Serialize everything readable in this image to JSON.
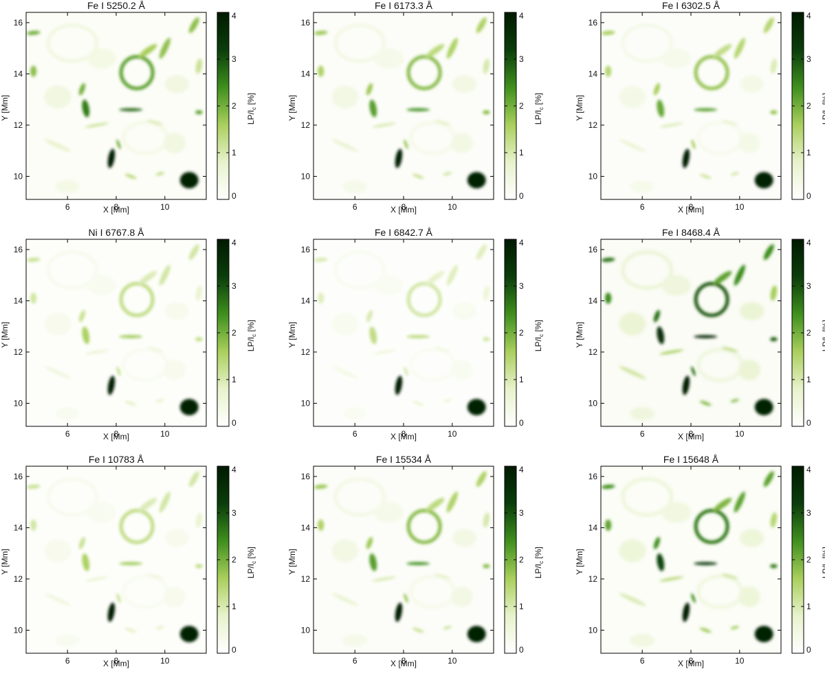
{
  "figure": {
    "colormap": [
      "#ffffff",
      "#e8f2cc",
      "#a9cf5c",
      "#3f8f1e",
      "#0b3d0b",
      "#001a00"
    ],
    "axis_color": "#000000"
  },
  "chart_data": [
    {
      "type": "heatmap",
      "title": "Fe I 5250.2 Å",
      "xlabel": "X [Mm]",
      "ylabel": "Y [Mm]",
      "xlim": [
        4.3,
        11.7
      ],
      "ylim": [
        9.1,
        16.4
      ],
      "xticks": [
        6,
        8,
        10
      ],
      "yticks": [
        10,
        12,
        14,
        16
      ],
      "colorbar": {
        "label_main": "LP/I",
        "label_sub": "c",
        "label_unit": " [%]",
        "range": [
          0,
          4
        ],
        "ticks": [
          0,
          1,
          2,
          3,
          4
        ]
      },
      "intensity": 1.0
    },
    {
      "type": "heatmap",
      "title": "Fe I 6173.3 Å",
      "xlabel": "X [Mm]",
      "ylabel": "Y [Mm]",
      "xlim": [
        4.3,
        11.7
      ],
      "ylim": [
        9.1,
        16.4
      ],
      "xticks": [
        6,
        8,
        10
      ],
      "yticks": [
        10,
        12,
        14,
        16
      ],
      "colorbar": {
        "label_main": "LP/I",
        "label_sub": "c",
        "label_unit": " [%]",
        "range": [
          0,
          4
        ],
        "ticks": [
          0,
          1,
          2,
          3,
          4
        ]
      },
      "intensity": 0.85
    },
    {
      "type": "heatmap",
      "title": "Fe I 6302.5 Å",
      "xlabel": "X [Mm]",
      "ylabel": "Y [Mm]",
      "xlim": [
        4.3,
        11.7
      ],
      "ylim": [
        9.1,
        16.4
      ],
      "xticks": [
        6,
        8,
        10
      ],
      "yticks": [
        10,
        12,
        14,
        16
      ],
      "colorbar": {
        "label_main": "LP/I",
        "label_sub": "c",
        "label_unit": " [%]",
        "range": [
          0,
          4
        ],
        "ticks": [
          0,
          1,
          2,
          3,
          4
        ]
      },
      "intensity": 0.8
    },
    {
      "type": "heatmap",
      "title": "Ni I 6767.8 Å",
      "xlabel": "X [Mm]",
      "ylabel": "Y [Mm]",
      "xlim": [
        4.3,
        11.7
      ],
      "ylim": [
        9.1,
        16.4
      ],
      "xticks": [
        6,
        8,
        10
      ],
      "yticks": [
        10,
        12,
        14,
        16
      ],
      "colorbar": {
        "label_main": "LP/I",
        "label_sub": "c",
        "label_unit": " [%]",
        "range": [
          0,
          4
        ],
        "ticks": [
          0,
          1,
          2,
          3,
          4
        ]
      },
      "intensity": 0.6
    },
    {
      "type": "heatmap",
      "title": "Fe I 6842.7 Å",
      "xlabel": "X [Mm]",
      "ylabel": "Y [Mm]",
      "xlim": [
        4.3,
        11.7
      ],
      "ylim": [
        9.1,
        16.4
      ],
      "xticks": [
        6,
        8,
        10
      ],
      "yticks": [
        10,
        12,
        14,
        16
      ],
      "colorbar": {
        "label_main": "LP/I",
        "label_sub": "c",
        "label_unit": " [%]",
        "range": [
          0,
          4
        ],
        "ticks": [
          0,
          1,
          2,
          3,
          4
        ]
      },
      "intensity": 0.5
    },
    {
      "type": "heatmap",
      "title": "Fe I 8468.4 Å",
      "xlabel": "X [Mm]",
      "ylabel": "Y [Mm]",
      "xlim": [
        4.3,
        11.7
      ],
      "ylim": [
        9.1,
        16.4
      ],
      "xticks": [
        6,
        8,
        10
      ],
      "yticks": [
        10,
        12,
        14,
        16
      ],
      "colorbar": {
        "label_main": "LP/I",
        "label_sub": "c",
        "label_unit": " [%]",
        "range": [
          0,
          4
        ],
        "ticks": [
          0,
          1,
          2,
          3,
          4
        ]
      },
      "intensity": 1.35
    },
    {
      "type": "heatmap",
      "title": "Fe I 10783 Å",
      "xlabel": "X [Mm]",
      "ylabel": "Y [Mm]",
      "xlim": [
        4.3,
        11.7
      ],
      "ylim": [
        9.1,
        16.4
      ],
      "xticks": [
        6,
        8,
        10
      ],
      "yticks": [
        10,
        12,
        14,
        16
      ],
      "colorbar": {
        "label_main": "LP/I",
        "label_sub": "c",
        "label_unit": " [%]",
        "range": [
          0,
          4
        ],
        "ticks": [
          0,
          1,
          2,
          3,
          4
        ]
      },
      "intensity": 0.6
    },
    {
      "type": "heatmap",
      "title": "Fe I 15534 Å",
      "xlabel": "X [Mm]",
      "ylabel": "Y [Mm]",
      "xlim": [
        4.3,
        11.7
      ],
      "ylim": [
        9.1,
        16.4
      ],
      "xticks": [
        6,
        8,
        10
      ],
      "yticks": [
        10,
        12,
        14,
        16
      ],
      "colorbar": {
        "label_main": "LP/I",
        "label_sub": "c",
        "label_unit": " [%]",
        "range": [
          0,
          4
        ],
        "ticks": [
          0,
          1,
          2,
          3,
          4
        ]
      },
      "intensity": 0.85
    },
    {
      "type": "heatmap",
      "title": "Fe I 15648 Å",
      "xlabel": "X [Mm]",
      "ylabel": "Y [Mm]",
      "xlim": [
        4.3,
        11.7
      ],
      "ylim": [
        9.1,
        16.4
      ],
      "xticks": [
        6,
        8,
        10
      ],
      "yticks": [
        10,
        12,
        14,
        16
      ],
      "colorbar": {
        "label_main": "LP/I",
        "label_sub": "c",
        "label_unit": " [%]",
        "range": [
          0,
          4
        ],
        "ticks": [
          0,
          1,
          2,
          3,
          4
        ]
      },
      "intensity": 1.2
    }
  ]
}
